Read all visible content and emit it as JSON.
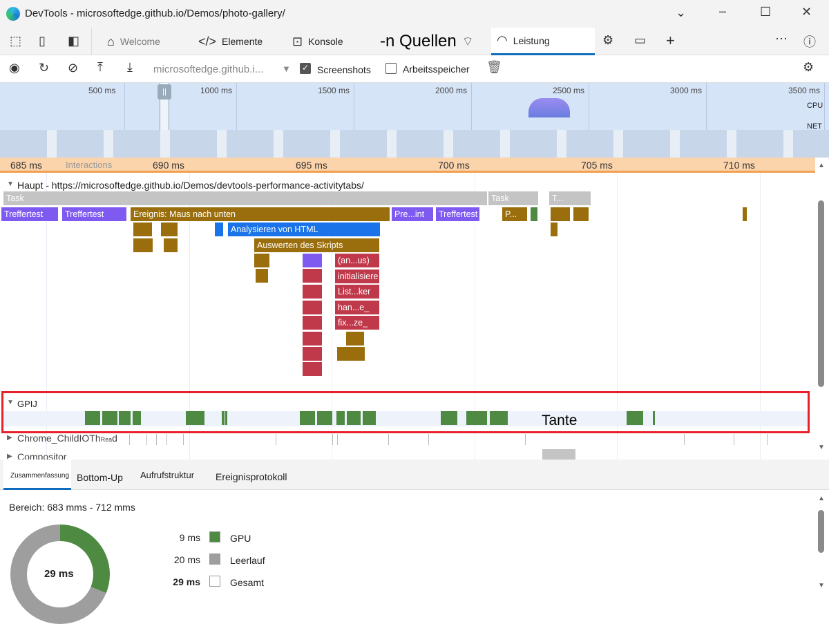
{
  "window": {
    "title": "DevTools - microsoftedge.github.io/Demos/photo-gallery/"
  },
  "tabs": [
    {
      "label": "Welcome"
    },
    {
      "label": "Elemente"
    },
    {
      "label": "Konsole"
    },
    {
      "label": "-n Quellen"
    },
    {
      "label": "Leistung",
      "active": true
    }
  ],
  "toolbar": {
    "url": "microsoftedge.github.i...",
    "screenshots_label": "Screenshots",
    "screenshots_checked": true,
    "memory_label": "Arbeitsspeicher",
    "memory_checked": false
  },
  "overview": {
    "ticks": [
      "500 ms",
      "1000 ms",
      "1500 ms",
      "2000 ms",
      "2500 ms",
      "3000 ms",
      "3500 ms"
    ],
    "cpu_label": "CPU",
    "net_label": "NET"
  },
  "ruler": {
    "interactions_label": "Interactions",
    "ticks": [
      "685 ms",
      "690 ms",
      "695 ms",
      "700 ms",
      "705 ms",
      "710 ms"
    ]
  },
  "main_track": {
    "title": "Haupt - https://microsoftedge.github.io/Demos/devtools-performance-activitytabs/",
    "blocks": [
      "Task",
      "Task",
      "T...",
      "Treffertest",
      "Treffertest",
      "Ereignis: Maus nach unten",
      "Pre...int",
      "Treffertest",
      "P...",
      "Analysieren von HTML",
      "Auswerten des Skripts",
      "(an...us)",
      "initialisiere",
      "List...ker",
      "han...e_",
      "fix...ze_"
    ]
  },
  "gpu_track": {
    "title": "GPIJ",
    "overlay": "Tante"
  },
  "threads": [
    {
      "title": "Chrome_ChildIOTh",
      "suffix": "Rea",
      "tail": "d"
    },
    {
      "title": "Compositor"
    }
  ],
  "bottom_tabs": [
    "Zusammenfassung",
    "Bottom-Up",
    "Aufrufstruktur",
    "Ereignisprotokoll"
  ],
  "summary": {
    "range": "Bereich: 683 mms - 712 mms",
    "total_center": "29 ms",
    "rows": [
      {
        "value": "9 ms",
        "label": "GPU",
        "color": "#4e8a42"
      },
      {
        "value": "20 ms",
        "label": "Leerlauf",
        "color": "#9e9e9e"
      },
      {
        "value": "29 ms",
        "label": "Gesamt",
        "color": "#ffffff"
      }
    ]
  },
  "colors": {
    "accent": "#0f6cbd",
    "highlight": "#e8202a"
  }
}
